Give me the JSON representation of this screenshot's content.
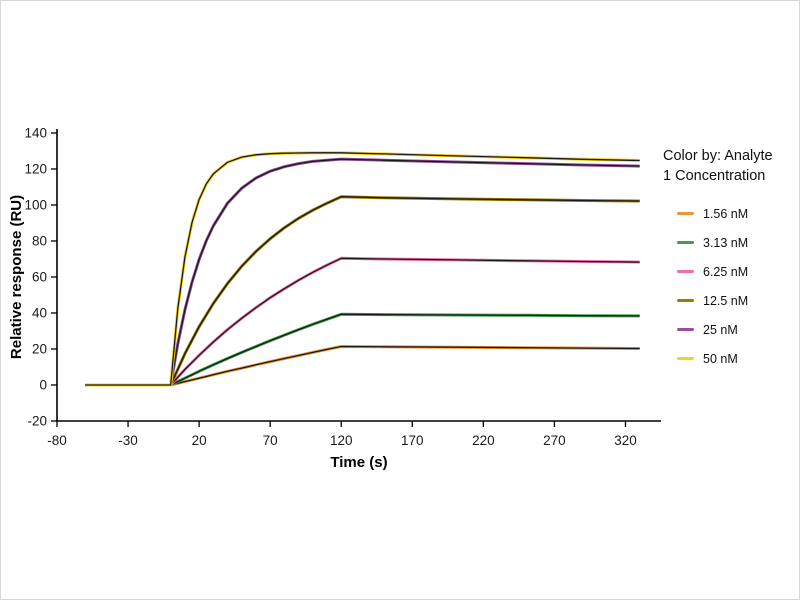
{
  "chart_data": {
    "type": "line",
    "title": "",
    "xlabel": "Time (s)",
    "ylabel": "Relative response (RU)",
    "xlim": [
      -80,
      345
    ],
    "ylim": [
      -20,
      140
    ],
    "x_ticks": [
      {
        "v": -80,
        "label": "-80"
      },
      {
        "v": -30,
        "label": "-30"
      },
      {
        "v": 20,
        "label": "20"
      },
      {
        "v": 70,
        "label": "70"
      },
      {
        "v": 120,
        "label": "120"
      },
      {
        "v": 170,
        "label": "170"
      },
      {
        "v": 220,
        "label": "220"
      },
      {
        "v": 270,
        "label": "270"
      },
      {
        "v": 320,
        "label": "320"
      }
    ],
    "y_ticks": [
      {
        "v": -20,
        "label": "-20"
      },
      {
        "v": 0,
        "label": "0"
      },
      {
        "v": 20,
        "label": "20"
      },
      {
        "v": 40,
        "label": "40"
      },
      {
        "v": 60,
        "label": "60"
      },
      {
        "v": 80,
        "label": "80"
      },
      {
        "v": 100,
        "label": "100"
      },
      {
        "v": 120,
        "label": "120"
      },
      {
        "v": 140,
        "label": "140"
      }
    ],
    "grid": false,
    "legend_position": "right",
    "legend_title_line1": "Color by: Analyte",
    "legend_title_line2": "1 Concentration",
    "fit_line_color": "#1a1a1a",
    "series": [
      {
        "name": "1.56 nM",
        "color": "#E8973A",
        "points": [
          [
            -60,
            0
          ],
          [
            0,
            0
          ],
          [
            10,
            1.9
          ],
          [
            20,
            3.8
          ],
          [
            30,
            5.7
          ],
          [
            40,
            7.6
          ],
          [
            50,
            9.4
          ],
          [
            60,
            11.2
          ],
          [
            70,
            13.0
          ],
          [
            80,
            14.7
          ],
          [
            90,
            16.4
          ],
          [
            100,
            18.1
          ],
          [
            110,
            19.8
          ],
          [
            120,
            21.4
          ],
          [
            150,
            21.2
          ],
          [
            200,
            21.0
          ],
          [
            250,
            20.7
          ],
          [
            290,
            20.5
          ],
          [
            330,
            20.3
          ]
        ]
      },
      {
        "name": "3.13 nM",
        "color": "#3F9E47",
        "points": [
          [
            -60,
            0
          ],
          [
            0,
            0
          ],
          [
            10,
            3.8
          ],
          [
            20,
            7.6
          ],
          [
            30,
            11.2
          ],
          [
            40,
            14.7
          ],
          [
            50,
            18.1
          ],
          [
            60,
            21.4
          ],
          [
            70,
            24.6
          ],
          [
            80,
            27.7
          ],
          [
            90,
            30.8
          ],
          [
            100,
            33.7
          ],
          [
            110,
            36.5
          ],
          [
            120,
            39.3
          ],
          [
            150,
            39.1
          ],
          [
            200,
            38.9
          ],
          [
            250,
            38.7
          ],
          [
            290,
            38.5
          ],
          [
            330,
            38.4
          ]
        ]
      },
      {
        "name": "6.25 nM",
        "color": "#F06EA9",
        "points": [
          [
            -60,
            0
          ],
          [
            0,
            0
          ],
          [
            10,
            8.6
          ],
          [
            20,
            16.5
          ],
          [
            30,
            23.9
          ],
          [
            40,
            30.8
          ],
          [
            50,
            37.1
          ],
          [
            60,
            43.0
          ],
          [
            70,
            48.5
          ],
          [
            80,
            53.5
          ],
          [
            90,
            58.2
          ],
          [
            100,
            62.6
          ],
          [
            110,
            66.6
          ],
          [
            120,
            70.4
          ],
          [
            150,
            70.0
          ],
          [
            200,
            69.5
          ],
          [
            250,
            69.0
          ],
          [
            290,
            68.6
          ],
          [
            330,
            68.3
          ]
        ]
      },
      {
        "name": "12.5 nM",
        "color": "#9C7A00",
        "points": [
          [
            -60,
            0
          ],
          [
            0,
            0
          ],
          [
            10,
            17.4
          ],
          [
            20,
            32.4
          ],
          [
            30,
            45.3
          ],
          [
            40,
            56.4
          ],
          [
            50,
            66.0
          ],
          [
            60,
            74.2
          ],
          [
            70,
            81.3
          ],
          [
            80,
            87.4
          ],
          [
            90,
            92.6
          ],
          [
            100,
            97.1
          ],
          [
            110,
            101.0
          ],
          [
            120,
            104.6
          ],
          [
            150,
            104.0
          ],
          [
            200,
            103.4
          ],
          [
            250,
            102.9
          ],
          [
            290,
            102.5
          ],
          [
            330,
            102.2
          ]
        ]
      },
      {
        "name": "25 nM",
        "color": "#94519B",
        "points": [
          [
            -60,
            0
          ],
          [
            0,
            0
          ],
          [
            5,
            22.9
          ],
          [
            10,
            41.7
          ],
          [
            15,
            57.1
          ],
          [
            20,
            69.7
          ],
          [
            25,
            80.0
          ],
          [
            30,
            88.4
          ],
          [
            40,
            101.0
          ],
          [
            50,
            109.4
          ],
          [
            60,
            115.0
          ],
          [
            70,
            118.8
          ],
          [
            80,
            121.3
          ],
          [
            90,
            123.0
          ],
          [
            100,
            124.2
          ],
          [
            110,
            124.9
          ],
          [
            120,
            125.5
          ],
          [
            150,
            124.9
          ],
          [
            200,
            123.9
          ],
          [
            250,
            123.0
          ],
          [
            290,
            122.2
          ],
          [
            330,
            121.6
          ]
        ]
      },
      {
        "name": "50 nM",
        "color": "#F2D02E",
        "points": [
          [
            -60,
            0
          ],
          [
            0,
            0
          ],
          [
            5,
            42.5
          ],
          [
            10,
            71.0
          ],
          [
            15,
            90.2
          ],
          [
            20,
            103.0
          ],
          [
            25,
            111.6
          ],
          [
            30,
            117.3
          ],
          [
            40,
            123.7
          ],
          [
            50,
            126.6
          ],
          [
            60,
            127.9
          ],
          [
            70,
            128.5
          ],
          [
            80,
            128.8
          ],
          [
            90,
            128.9
          ],
          [
            100,
            129.0
          ],
          [
            110,
            129.0
          ],
          [
            120,
            129.0
          ],
          [
            150,
            128.4
          ],
          [
            200,
            127.3
          ],
          [
            250,
            126.3
          ],
          [
            290,
            125.4
          ],
          [
            330,
            124.7
          ]
        ]
      }
    ]
  }
}
